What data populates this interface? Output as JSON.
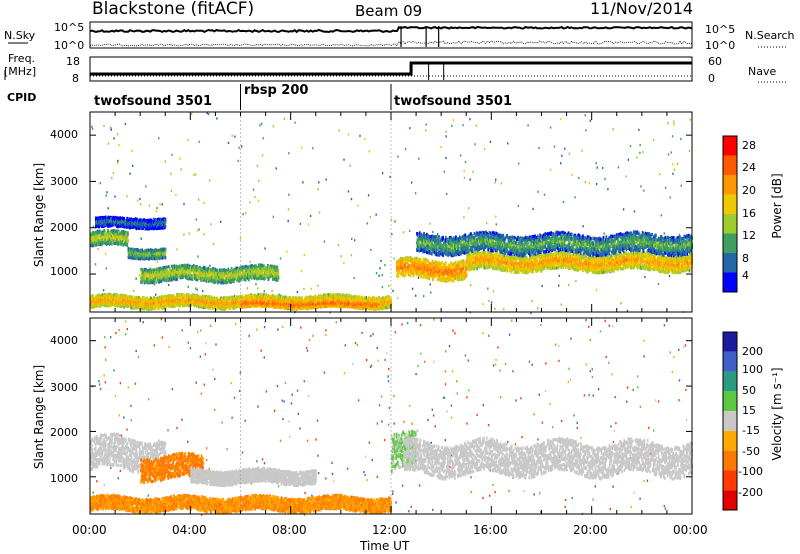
{
  "header": {
    "title": "Blackstone (fitACF)",
    "beam": "Beam 09",
    "date": "11/Nov/2014"
  },
  "top_panels": {
    "nsky_label": "N.Sky",
    "nsky_ticks": [
      "10^5",
      "10^0"
    ],
    "nsearch_label": "N.Search",
    "freq_label_1": "Freq.",
    "freq_label_2": "[MHz]",
    "freq_ticks": [
      "18",
      "8"
    ],
    "nave_label": "Nave",
    "nave_ticks": [
      "60",
      "0"
    ],
    "cpid_label": "CPID",
    "cpid_segments": [
      {
        "label": "twofsound 3501",
        "start_hour": 0,
        "end_hour": 6
      },
      {
        "label": "rbsp 200",
        "start_hour": 6,
        "end_hour": 12
      },
      {
        "label": "twofsound 3501",
        "start_hour": 12,
        "end_hour": 24
      }
    ]
  },
  "colorbars": {
    "power": {
      "label": "Power [dB]",
      "ticks": [
        "28",
        "24",
        "20",
        "16",
        "12",
        "8",
        "4"
      ],
      "colors": [
        "#ff0000",
        "#ff5a00",
        "#ff9600",
        "#f0c800",
        "#9ecb2e",
        "#3e9f5e",
        "#2166a8",
        "#0000ff"
      ]
    },
    "velocity": {
      "label": "Velocity [m s⁻¹]",
      "ticks": [
        "200",
        "100",
        "50",
        "15",
        "-15",
        "-50",
        "-100",
        "-200"
      ],
      "colors": [
        "#1a1a9e",
        "#4060c8",
        "#2a9a80",
        "#5cc840",
        "#c8c8c8",
        "#ffaa00",
        "#ff7800",
        "#ff3c00",
        "#e00000"
      ]
    }
  },
  "chart_data": [
    {
      "type": "heatmap",
      "title": "Power",
      "ylabel": "Slant Range [km]",
      "xlim": [
        0,
        24
      ],
      "ylim": [
        180,
        4500
      ],
      "yticks": [
        "4000",
        "3000",
        "2000",
        "1000"
      ],
      "bands": [
        {
          "start_hour": 0,
          "end_hour": 1.5,
          "range_center": 1750,
          "range_width": 300,
          "power_db": 16
        },
        {
          "start_hour": 0.2,
          "end_hour": 3.0,
          "range_center": 2100,
          "range_width": 200,
          "power_db": 8
        },
        {
          "start_hour": 1.5,
          "end_hour": 3.0,
          "range_center": 1450,
          "range_width": 200,
          "power_db": 14
        },
        {
          "start_hour": 2.0,
          "end_hour": 7.5,
          "range_center": 1000,
          "range_width": 300,
          "power_db": 16
        },
        {
          "start_hour": 0,
          "end_hour": 12,
          "range_center": 400,
          "range_width": 250,
          "power_db": 22
        },
        {
          "start_hour": 6,
          "end_hour": 11.5,
          "range_center": 350,
          "range_width": 150,
          "power_db": 26
        },
        {
          "start_hour": 12.2,
          "end_hour": 15,
          "range_center": 1100,
          "range_width": 400,
          "power_db": 24
        },
        {
          "start_hour": 15,
          "end_hour": 24,
          "range_center": 1250,
          "range_width": 350,
          "power_db": 22
        },
        {
          "start_hour": 13,
          "end_hour": 24,
          "range_center": 1650,
          "range_width": 400,
          "power_db": 12
        }
      ]
    },
    {
      "type": "heatmap",
      "title": "Velocity",
      "ylabel": "Slant Range [km]",
      "xlabel": "Time UT",
      "xlim": [
        0,
        24
      ],
      "ylim": [
        180,
        4500
      ],
      "xticks": [
        "00:00",
        "04:00",
        "08:00",
        "12:00",
        "16:00",
        "20:00",
        "00:00"
      ],
      "yticks": [
        "4000",
        "3000",
        "2000",
        "1000"
      ],
      "bands": [
        {
          "start_hour": 0,
          "end_hour": 3.0,
          "range_center": 1500,
          "range_width": 700,
          "velocity": 0
        },
        {
          "start_hour": 2.0,
          "end_hour": 4.5,
          "range_center": 1200,
          "range_width": 500,
          "velocity": -60
        },
        {
          "start_hour": 4.0,
          "end_hour": 9.0,
          "range_center": 1000,
          "range_width": 300,
          "velocity": 0
        },
        {
          "start_hour": 0,
          "end_hour": 12,
          "range_center": 400,
          "range_width": 300,
          "velocity": -50
        },
        {
          "start_hour": 12,
          "end_hour": 13,
          "range_center": 1500,
          "range_width": 800,
          "velocity": 20
        },
        {
          "start_hour": 12.5,
          "end_hour": 24,
          "range_center": 1400,
          "range_width": 700,
          "velocity": 0
        }
      ]
    }
  ]
}
